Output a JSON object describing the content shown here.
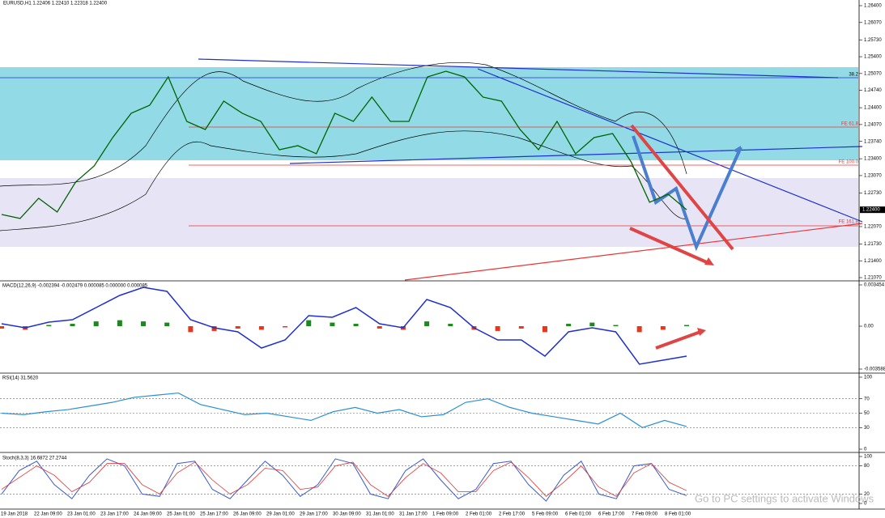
{
  "header": "EURUSD,H1  1.22406 1.22410 1.22318 1.22400",
  "price_panel": {
    "ylim": [
      1.2107,
      1.264
    ],
    "yticks": [
      {
        "value": 1.264,
        "label": "1.26400"
      },
      {
        "value": 1.2607,
        "label": "1.26070"
      },
      {
        "value": 1.2573,
        "label": "1.25730"
      },
      {
        "value": 1.254,
        "label": "1.25400"
      },
      {
        "value": 1.2507,
        "label": "1.25070"
      },
      {
        "value": 1.2474,
        "label": "1.24740"
      },
      {
        "value": 1.244,
        "label": "1.24400"
      },
      {
        "value": 1.2407,
        "label": "1.24070"
      },
      {
        "value": 1.2374,
        "label": "1.23740"
      },
      {
        "value": 1.234,
        "label": "1.23400"
      },
      {
        "value": 1.2307,
        "label": "1.23070"
      },
      {
        "value": 1.2273,
        "label": "1.22730"
      },
      {
        "value": 1.2207,
        "label": "1.22070"
      },
      {
        "value": 1.2173,
        "label": "1.21730"
      },
      {
        "value": 1.214,
        "label": "1.21400"
      },
      {
        "value": 1.2107,
        "label": "1.21070"
      }
    ],
    "price_tag": {
      "value": 1.224,
      "label": "1.22400"
    },
    "values": [
      1.22308,
      1.22229,
      1.22625,
      1.22356,
      1.22943,
      1.2326,
      1.23815,
      1.24291,
      1.24449,
      1.25004,
      1.24132,
      1.23973,
      1.24529,
      1.24291,
      1.24132,
      1.23577,
      1.23656,
      1.23498,
      1.24291,
      1.24132,
      1.24608,
      1.24132,
      1.24132,
      1.25004,
      1.25115,
      1.25004,
      1.24608,
      1.24529,
      1.23973,
      1.23577,
      1.24132,
      1.23498,
      1.23815,
      1.23894,
      1.23339,
      1.22546,
      1.22705,
      1.224
    ],
    "fib_labels": [
      "38.2",
      "FE 61.8",
      "FE 100.0",
      "FE 161.8"
    ]
  },
  "macd_panel": {
    "label": "MACD(12,26,9) -0.002394 -0.002479 0.000085 0.000000 0.000085",
    "ylim": [
      -0.003588,
      0.003454
    ],
    "yticks": [
      0.003454,
      {
        "value": 0,
        "label": "0.00"
      },
      -0.003588
    ],
    "values": [
      0.000204,
      -0.000134,
      0.00034,
      0.000543,
      0.001558,
      0.002574,
      0.003251,
      0.002912,
      0.000543,
      -0.000134,
      -0.000473,
      -0.001827,
      -0.00115,
      0.000881,
      0.000746,
      0.001558,
      0.000204,
      -0.000134,
      0.002235,
      0.001558,
      -0.000134,
      -0.00115,
      -0.00115,
      -0.002504,
      -0.000473,
      -0.000134,
      -0.000473,
      -0.003181,
      -0.002842,
      -0.002504
    ],
    "histogram": [
      -0.0002,
      -0.0003,
      0.0001,
      0.0002,
      0.0004,
      0.0005,
      0.0004,
      0.0003,
      -0.0005,
      -0.0004,
      -0.0002,
      -0.0003,
      -0.0001,
      0.0005,
      0.0003,
      0.0002,
      -0.0002,
      -0.0003,
      0.0004,
      0.0002,
      -0.0003,
      -0.0004,
      -0.0002,
      -0.0005,
      0.0002,
      0.0003,
      0.0001,
      -0.0005,
      -0.0003,
      0.0001
    ]
  },
  "rsi_panel": {
    "label": "RSI(14) 31.5620",
    "ylim": [
      0,
      100
    ],
    "yticks": [
      100,
      70,
      50,
      30,
      0
    ],
    "levels": [
      70,
      50,
      30
    ],
    "values": [
      50,
      48,
      52,
      55,
      60,
      65,
      72,
      75,
      78,
      62,
      55,
      48,
      50,
      45,
      40,
      52,
      58,
      50,
      55,
      45,
      48,
      65,
      70,
      58,
      50,
      45,
      40,
      35,
      50,
      30,
      40,
      31.562
    ]
  },
  "stoch_panel": {
    "label": "Stoch(8,3,3) 16.6872 27.2744",
    "ylim": [
      0,
      100
    ],
    "yticks": [
      100,
      80,
      20,
      0
    ],
    "levels": [
      80,
      20
    ],
    "k": [
      20,
      70,
      90,
      40,
      10,
      60,
      95,
      80,
      20,
      15,
      85,
      90,
      30,
      10,
      50,
      90,
      60,
      15,
      40,
      95,
      85,
      20,
      10,
      70,
      95,
      50,
      10,
      30,
      85,
      90,
      40,
      5,
      60,
      90,
      20,
      10,
      80,
      85,
      30,
      16.6872
    ],
    "d": [
      30,
      55,
      80,
      60,
      25,
      45,
      85,
      85,
      40,
      20,
      65,
      88,
      50,
      20,
      40,
      75,
      70,
      30,
      35,
      80,
      88,
      40,
      15,
      55,
      85,
      65,
      25,
      25,
      70,
      88,
      55,
      15,
      45,
      80,
      35,
      15,
      65,
      85,
      45,
      27.2744
    ]
  },
  "date_labels": [
    "19 Jan 2018",
    "22 Jan 09:00",
    "23 Jan 01:00",
    "23 Jan 17:00",
    "24 Jan 09:00",
    "25 Jan 01:00",
    "25 Jan 17:00",
    "26 Jan 09:00",
    "29 Jan 01:00",
    "29 Jan 17:00",
    "30 Jan 09:00",
    "31 Jan 01:00",
    "31 Jan 17:00",
    "1 Feb 09:00",
    "2 Feb 01:00",
    "2 Feb 17:00",
    "5 Feb 09:00",
    "6 Feb 01:00",
    "6 Feb 17:00",
    "7 Feb 09:00",
    "8 Feb 01:00"
  ],
  "watermark": "Go to PC settings to activate Windows"
}
